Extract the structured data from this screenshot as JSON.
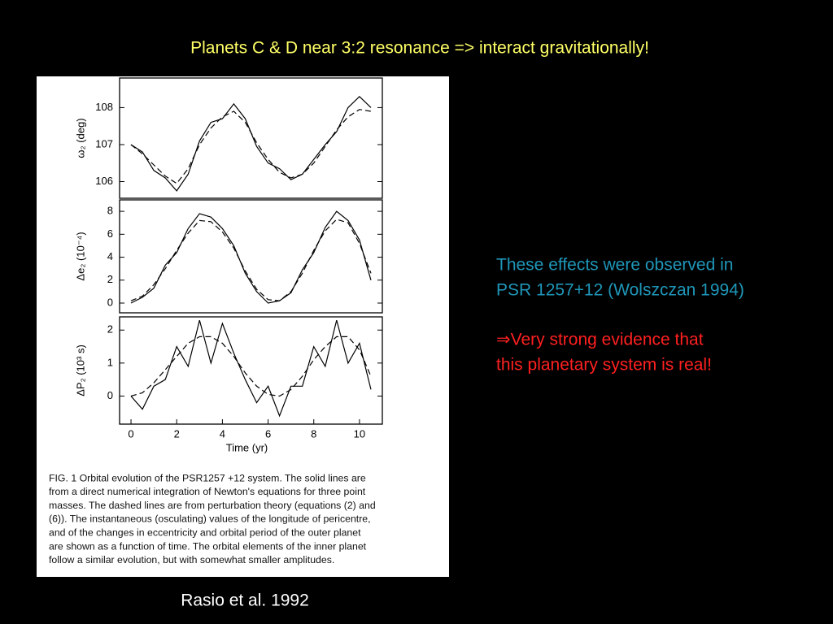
{
  "title": "Planets C & D near 3:2 resonance => interact gravitationally!",
  "chart_data": [
    {
      "type": "line",
      "ylabel": "ω₂ (deg)",
      "x": [
        0,
        0.5,
        1,
        1.5,
        2,
        2.5,
        3,
        3.5,
        4,
        4.5,
        5,
        5.5,
        6,
        6.5,
        7,
        7.5,
        8,
        8.5,
        9,
        9.5,
        10,
        10.5
      ],
      "series": [
        {
          "color": "#000000",
          "style": "solid",
          "values": [
            107.0,
            106.8,
            106.3,
            106.1,
            105.75,
            106.2,
            107.1,
            107.6,
            107.7,
            108.1,
            107.7,
            106.95,
            106.5,
            106.35,
            106.05,
            106.2,
            106.6,
            107.0,
            107.35,
            108.0,
            108.3,
            108.0
          ]
        },
        {
          "color": "#000000",
          "style": "dashed",
          "values": [
            107.0,
            106.75,
            106.45,
            106.15,
            105.95,
            106.35,
            107.0,
            107.45,
            107.75,
            107.9,
            107.6,
            107.05,
            106.6,
            106.25,
            106.1,
            106.2,
            106.5,
            106.95,
            107.4,
            107.75,
            107.95,
            107.9
          ]
        }
      ],
      "xlim": [
        -0.5,
        11
      ],
      "ylim": [
        105.55,
        108.8
      ],
      "yticks": [
        106,
        107,
        108
      ]
    },
    {
      "type": "line",
      "ylabel": "Δe₂ (10⁻⁴)",
      "x": [
        0,
        0.5,
        1,
        1.5,
        2,
        2.5,
        3,
        3.5,
        4,
        4.5,
        5,
        5.5,
        6,
        6.5,
        7,
        7.5,
        8,
        8.5,
        9,
        9.5,
        10,
        10.5
      ],
      "series": [
        {
          "color": "#000000",
          "style": "solid",
          "values": [
            0.0,
            0.5,
            1.3,
            3.3,
            4.4,
            6.5,
            7.8,
            7.5,
            6.5,
            5.0,
            2.6,
            1.0,
            0.0,
            0.2,
            0.9,
            2.9,
            4.4,
            6.6,
            8.0,
            7.2,
            5.5,
            2.0
          ]
        },
        {
          "color": "#000000",
          "style": "dashed",
          "values": [
            0.2,
            0.6,
            1.6,
            3.0,
            4.6,
            6.1,
            7.2,
            7.1,
            6.2,
            4.8,
            2.8,
            1.2,
            0.3,
            0.2,
            1.0,
            2.6,
            4.6,
            6.3,
            7.3,
            7.0,
            5.2,
            2.6
          ]
        }
      ],
      "xlim": [
        -0.5,
        11
      ],
      "ylim": [
        -0.85,
        9.0
      ],
      "yticks": [
        0,
        2,
        4,
        6,
        8
      ]
    },
    {
      "type": "line",
      "ylabel": "ΔP₂ (10³ s)",
      "xlabel": "Time (yr)",
      "x": [
        0,
        0.5,
        1,
        1.5,
        2,
        2.5,
        3,
        3.5,
        4,
        4.5,
        5,
        5.5,
        6,
        6.5,
        7,
        7.5,
        8,
        8.5,
        9,
        9.5,
        10,
        10.5
      ],
      "series": [
        {
          "color": "#000000",
          "style": "solid",
          "values": [
            0.0,
            -0.4,
            0.3,
            0.5,
            1.5,
            0.9,
            2.3,
            1.0,
            2.2,
            1.3,
            0.5,
            -0.2,
            0.3,
            -0.6,
            0.3,
            0.3,
            1.5,
            0.9,
            2.3,
            1.0,
            1.6,
            0.2
          ]
        },
        {
          "color": "#000000",
          "style": "dashed",
          "values": [
            0.0,
            0.1,
            0.4,
            0.8,
            1.2,
            1.6,
            1.8,
            1.8,
            1.6,
            1.2,
            0.7,
            0.3,
            0.05,
            0.0,
            0.2,
            0.6,
            1.1,
            1.5,
            1.8,
            1.8,
            1.4,
            0.6
          ]
        }
      ],
      "xlim": [
        -0.5,
        11
      ],
      "ylim": [
        -0.85,
        2.4
      ],
      "yticks": [
        0,
        1,
        2
      ],
      "xticks": [
        0,
        2,
        4,
        6,
        8,
        10
      ]
    }
  ],
  "caption": [
    "FIG. 1 Orbital evolution of the PSR1257 +12 system. The solid lines are",
    "from a direct numerical integration of Newton's equations for three point",
    "masses. The dashed lines are from perturbation theory (equations (2) and",
    "(6)). The instantaneous (osculating) values of the longitude of pericentre,",
    "and of the changes in eccentricity and orbital period of the outer planet",
    "are shown as a function of time. The orbital elements of the inner planet",
    "follow a similar evolution, but with somewhat smaller amplitudes."
  ],
  "observation": [
    "These effects were observed in",
    "PSR 1257+12 (Wolszczan 1994)"
  ],
  "conclusion": [
    "⇒Very strong evidence that",
    "this planetary system is real!"
  ],
  "credit": "Rasio et al. 1992"
}
